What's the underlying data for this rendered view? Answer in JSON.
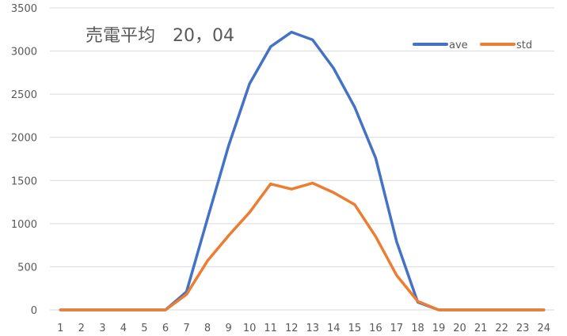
{
  "chart_data": {
    "type": "line",
    "title": "売電平均　20，04",
    "x": [
      1,
      2,
      3,
      4,
      5,
      6,
      7,
      8,
      9,
      10,
      11,
      12,
      13,
      14,
      15,
      16,
      17,
      18,
      19,
      20,
      21,
      22,
      23,
      24
    ],
    "series": [
      {
        "name": "ave",
        "color": "#4472C4",
        "values": [
          0,
          0,
          0,
          0,
          0,
          0,
          210,
          1060,
          1900,
          2620,
          3050,
          3220,
          3130,
          2800,
          2350,
          1760,
          790,
          90,
          0,
          0,
          0,
          0,
          0,
          0
        ]
      },
      {
        "name": "std",
        "color": "#ED7D31",
        "values": [
          0,
          0,
          0,
          0,
          0,
          0,
          180,
          570,
          860,
          1130,
          1460,
          1400,
          1470,
          1360,
          1220,
          850,
          400,
          100,
          0,
          0,
          0,
          0,
          0,
          0
        ]
      }
    ],
    "ylim": [
      0,
      3500
    ],
    "yticks": [
      0,
      500,
      1000,
      1500,
      2000,
      2500,
      3000,
      3500
    ],
    "grid": true,
    "legend_position": "top-right"
  }
}
